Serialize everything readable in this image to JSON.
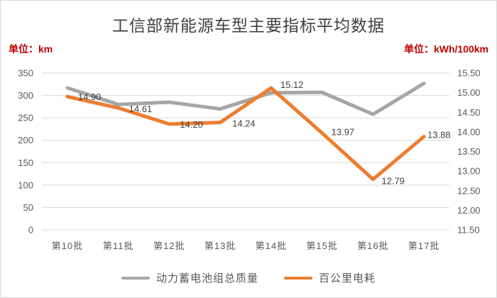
{
  "chart_data": {
    "type": "line",
    "title": "工信部新能源车型主要指标平均数据",
    "categories": [
      "第10批",
      "第11批",
      "第12批",
      "第13批",
      "第14批",
      "第15批",
      "第16批",
      "第17批"
    ],
    "series": [
      {
        "name": "动力蓄电池组总质量",
        "axis": "left",
        "color": "#a6a6a6",
        "values": [
          317,
          280,
          285,
          270,
          306,
          307,
          258,
          327
        ],
        "labels_shown": false
      },
      {
        "name": "百公里电耗",
        "axis": "right",
        "color": "#ed7d31",
        "values": [
          14.9,
          14.61,
          14.2,
          14.24,
          15.12,
          13.97,
          12.79,
          13.88
        ],
        "labels_shown": true,
        "labels": [
          "14.90",
          "14.61",
          "14.20",
          "14.24",
          "15.12",
          "13.97",
          "12.79",
          "13.88"
        ]
      }
    ],
    "left_axis": {
      "unit": "单位：km",
      "min": 0,
      "max": 350,
      "step": 50,
      "ticks": [
        "350",
        "300",
        "250",
        "200",
        "150",
        "100",
        "50",
        "0"
      ]
    },
    "right_axis": {
      "unit": "单位：kWh/100km",
      "min": 11.5,
      "max": 15.5,
      "step": 0.5,
      "ticks": [
        "15.50",
        "15.00",
        "14.50",
        "14.00",
        "13.50",
        "13.00",
        "12.50",
        "12.00",
        "11.50"
      ]
    },
    "grid": true,
    "legend_position": "bottom"
  },
  "colors": {
    "grid": "#d9d9d9",
    "tick_text": "#595959",
    "data_label_text": "#404040",
    "title_text": "#404040",
    "unit_text": "#c00000",
    "series_battery_mass": "#a6a6a6",
    "series_consumption": "#ed7d31"
  }
}
